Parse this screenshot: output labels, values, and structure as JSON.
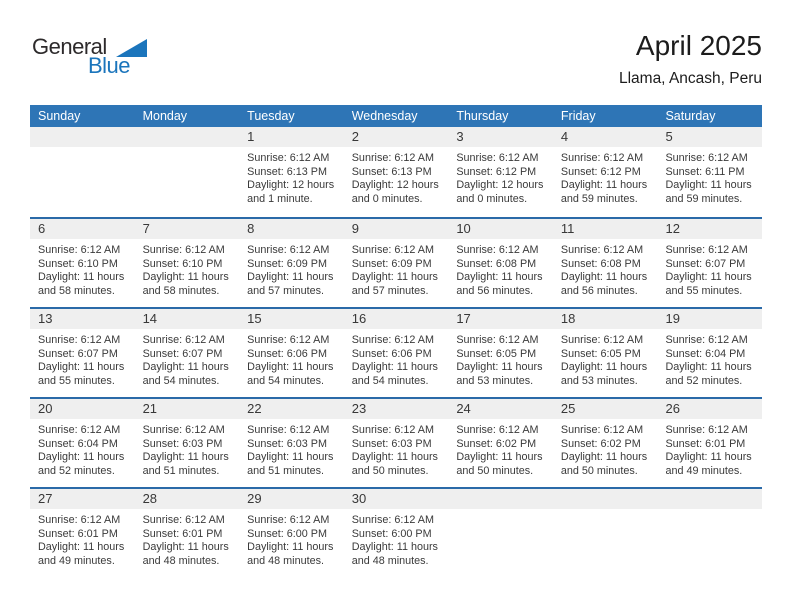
{
  "logo": {
    "part1": "General",
    "part2": "Blue"
  },
  "header": {
    "title": "April 2025",
    "subtitle": "Llama, Ancash, Peru"
  },
  "colors": {
    "header_blue": "#2e75b6",
    "separator_blue": "#2a6aa8",
    "strip_gray": "#efefef",
    "logo_blue": "#1b75bc",
    "text_dark": "#3a3a3a"
  },
  "calendar": {
    "weekdays": [
      "Sunday",
      "Monday",
      "Tuesday",
      "Wednesday",
      "Thursday",
      "Friday",
      "Saturday"
    ],
    "weeks": [
      [
        null,
        null,
        {
          "day": "1",
          "sunrise": "Sunrise: 6:12 AM",
          "sunset": "Sunset: 6:13 PM",
          "daylight1": "Daylight: 12 hours",
          "daylight2": "and 1 minute."
        },
        {
          "day": "2",
          "sunrise": "Sunrise: 6:12 AM",
          "sunset": "Sunset: 6:13 PM",
          "daylight1": "Daylight: 12 hours",
          "daylight2": "and 0 minutes."
        },
        {
          "day": "3",
          "sunrise": "Sunrise: 6:12 AM",
          "sunset": "Sunset: 6:12 PM",
          "daylight1": "Daylight: 12 hours",
          "daylight2": "and 0 minutes."
        },
        {
          "day": "4",
          "sunrise": "Sunrise: 6:12 AM",
          "sunset": "Sunset: 6:12 PM",
          "daylight1": "Daylight: 11 hours",
          "daylight2": "and 59 minutes."
        },
        {
          "day": "5",
          "sunrise": "Sunrise: 6:12 AM",
          "sunset": "Sunset: 6:11 PM",
          "daylight1": "Daylight: 11 hours",
          "daylight2": "and 59 minutes."
        }
      ],
      [
        {
          "day": "6",
          "sunrise": "Sunrise: 6:12 AM",
          "sunset": "Sunset: 6:10 PM",
          "daylight1": "Daylight: 11 hours",
          "daylight2": "and 58 minutes."
        },
        {
          "day": "7",
          "sunrise": "Sunrise: 6:12 AM",
          "sunset": "Sunset: 6:10 PM",
          "daylight1": "Daylight: 11 hours",
          "daylight2": "and 58 minutes."
        },
        {
          "day": "8",
          "sunrise": "Sunrise: 6:12 AM",
          "sunset": "Sunset: 6:09 PM",
          "daylight1": "Daylight: 11 hours",
          "daylight2": "and 57 minutes."
        },
        {
          "day": "9",
          "sunrise": "Sunrise: 6:12 AM",
          "sunset": "Sunset: 6:09 PM",
          "daylight1": "Daylight: 11 hours",
          "daylight2": "and 57 minutes."
        },
        {
          "day": "10",
          "sunrise": "Sunrise: 6:12 AM",
          "sunset": "Sunset: 6:08 PM",
          "daylight1": "Daylight: 11 hours",
          "daylight2": "and 56 minutes."
        },
        {
          "day": "11",
          "sunrise": "Sunrise: 6:12 AM",
          "sunset": "Sunset: 6:08 PM",
          "daylight1": "Daylight: 11 hours",
          "daylight2": "and 56 minutes."
        },
        {
          "day": "12",
          "sunrise": "Sunrise: 6:12 AM",
          "sunset": "Sunset: 6:07 PM",
          "daylight1": "Daylight: 11 hours",
          "daylight2": "and 55 minutes."
        }
      ],
      [
        {
          "day": "13",
          "sunrise": "Sunrise: 6:12 AM",
          "sunset": "Sunset: 6:07 PM",
          "daylight1": "Daylight: 11 hours",
          "daylight2": "and 55 minutes."
        },
        {
          "day": "14",
          "sunrise": "Sunrise: 6:12 AM",
          "sunset": "Sunset: 6:07 PM",
          "daylight1": "Daylight: 11 hours",
          "daylight2": "and 54 minutes."
        },
        {
          "day": "15",
          "sunrise": "Sunrise: 6:12 AM",
          "sunset": "Sunset: 6:06 PM",
          "daylight1": "Daylight: 11 hours",
          "daylight2": "and 54 minutes."
        },
        {
          "day": "16",
          "sunrise": "Sunrise: 6:12 AM",
          "sunset": "Sunset: 6:06 PM",
          "daylight1": "Daylight: 11 hours",
          "daylight2": "and 54 minutes."
        },
        {
          "day": "17",
          "sunrise": "Sunrise: 6:12 AM",
          "sunset": "Sunset: 6:05 PM",
          "daylight1": "Daylight: 11 hours",
          "daylight2": "and 53 minutes."
        },
        {
          "day": "18",
          "sunrise": "Sunrise: 6:12 AM",
          "sunset": "Sunset: 6:05 PM",
          "daylight1": "Daylight: 11 hours",
          "daylight2": "and 53 minutes."
        },
        {
          "day": "19",
          "sunrise": "Sunrise: 6:12 AM",
          "sunset": "Sunset: 6:04 PM",
          "daylight1": "Daylight: 11 hours",
          "daylight2": "and 52 minutes."
        }
      ],
      [
        {
          "day": "20",
          "sunrise": "Sunrise: 6:12 AM",
          "sunset": "Sunset: 6:04 PM",
          "daylight1": "Daylight: 11 hours",
          "daylight2": "and 52 minutes."
        },
        {
          "day": "21",
          "sunrise": "Sunrise: 6:12 AM",
          "sunset": "Sunset: 6:03 PM",
          "daylight1": "Daylight: 11 hours",
          "daylight2": "and 51 minutes."
        },
        {
          "day": "22",
          "sunrise": "Sunrise: 6:12 AM",
          "sunset": "Sunset: 6:03 PM",
          "daylight1": "Daylight: 11 hours",
          "daylight2": "and 51 minutes."
        },
        {
          "day": "23",
          "sunrise": "Sunrise: 6:12 AM",
          "sunset": "Sunset: 6:03 PM",
          "daylight1": "Daylight: 11 hours",
          "daylight2": "and 50 minutes."
        },
        {
          "day": "24",
          "sunrise": "Sunrise: 6:12 AM",
          "sunset": "Sunset: 6:02 PM",
          "daylight1": "Daylight: 11 hours",
          "daylight2": "and 50 minutes."
        },
        {
          "day": "25",
          "sunrise": "Sunrise: 6:12 AM",
          "sunset": "Sunset: 6:02 PM",
          "daylight1": "Daylight: 11 hours",
          "daylight2": "and 50 minutes."
        },
        {
          "day": "26",
          "sunrise": "Sunrise: 6:12 AM",
          "sunset": "Sunset: 6:01 PM",
          "daylight1": "Daylight: 11 hours",
          "daylight2": "and 49 minutes."
        }
      ],
      [
        {
          "day": "27",
          "sunrise": "Sunrise: 6:12 AM",
          "sunset": "Sunset: 6:01 PM",
          "daylight1": "Daylight: 11 hours",
          "daylight2": "and 49 minutes."
        },
        {
          "day": "28",
          "sunrise": "Sunrise: 6:12 AM",
          "sunset": "Sunset: 6:01 PM",
          "daylight1": "Daylight: 11 hours",
          "daylight2": "and 48 minutes."
        },
        {
          "day": "29",
          "sunrise": "Sunrise: 6:12 AM",
          "sunset": "Sunset: 6:00 PM",
          "daylight1": "Daylight: 11 hours",
          "daylight2": "and 48 minutes."
        },
        {
          "day": "30",
          "sunrise": "Sunrise: 6:12 AM",
          "sunset": "Sunset: 6:00 PM",
          "daylight1": "Daylight: 11 hours",
          "daylight2": "and 48 minutes."
        },
        null,
        null,
        null
      ]
    ]
  }
}
